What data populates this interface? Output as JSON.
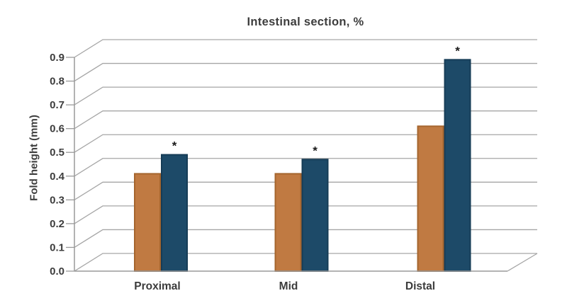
{
  "chart_data": {
    "type": "bar",
    "style": "pseudo-3d-oblique-columns",
    "title": "Intestinal section, %",
    "ylabel": "Fold height (mm)",
    "xlabel": "",
    "categories": [
      "Proximal",
      "Mid",
      "Distal"
    ],
    "series": [
      {
        "name": "orange",
        "color": "#C07A42",
        "border_color": "#A5652E",
        "values": [
          0.41,
          0.41,
          0.61
        ]
      },
      {
        "name": "blue",
        "color": "#1D4A68",
        "border_color": "#163C56",
        "values": [
          0.49,
          0.47,
          0.89
        ]
      }
    ],
    "annotations": {
      "text": "*",
      "series": "blue",
      "on_categories": [
        "Proximal",
        "Mid",
        "Distal"
      ]
    },
    "y_ticks": [
      "0.0",
      "0.1",
      "0.2",
      "0.3",
      "0.4",
      "0.5",
      "0.6",
      "0.7",
      "0.8",
      "0.9"
    ],
    "ylim": [
      0,
      0.9
    ],
    "grid": true,
    "legend": "none",
    "colors": {
      "gridline": "#A6A6A6",
      "axis": "#9A9A9A",
      "text": "#3D3D3D",
      "annotation": "#1A1A1A",
      "background": "#FFFFFF"
    }
  }
}
